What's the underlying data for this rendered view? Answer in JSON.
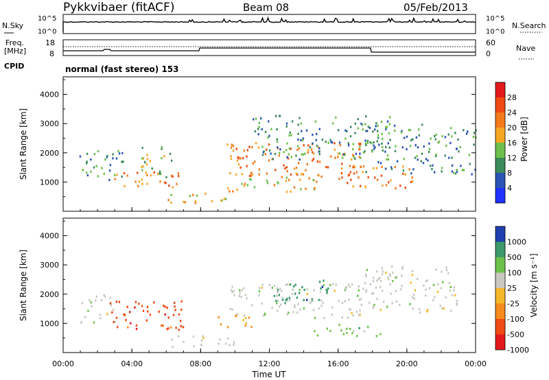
{
  "header": {
    "station": "Pykkvibaer (fitACF)",
    "beam": "Beam 08",
    "date": "05/Feb/2013"
  },
  "noise_panel": {
    "left_label": "N.Sky",
    "right_label": "N.Search",
    "left_ticks": [
      "10^5",
      "10^0"
    ],
    "right_ticks": [
      "10^5",
      "10^0"
    ]
  },
  "freq_panel": {
    "left_label_top": "Freq.",
    "left_label_bottom": "[MHz]",
    "right_label": "Nave",
    "left_ticks": [
      "18",
      "8"
    ],
    "right_ticks": [
      "60",
      "0"
    ]
  },
  "cpid": {
    "label": "CPID",
    "text": "normal (fast stereo) 153"
  },
  "colors": {
    "power_scale": [
      "#1f32ff",
      "#2a55b5",
      "#3b8a5a",
      "#6cbf4a",
      "#f5a623",
      "#f27a1a",
      "#ef4a12",
      "#e31a1c"
    ],
    "velocity_scale": [
      "#e31a1c",
      "#ef4a12",
      "#f58b1a",
      "#f5b72a",
      "#c8c8c0",
      "#6cc14a",
      "#3a9a6a",
      "#1f3fae"
    ],
    "noise_line": "#000000"
  },
  "chart_data": [
    {
      "type": "heatmap",
      "name": "power",
      "xlabel": "",
      "ylabel": "Slant Range [km]",
      "ylim": [
        0,
        4600
      ],
      "y_ticks": [
        "1000",
        "2000",
        "3000",
        "4000"
      ],
      "x_ticks": [
        "00:00",
        "04:00",
        "08:00",
        "12:00",
        "16:00",
        "20:00",
        "00:00"
      ],
      "colorbar": {
        "label": "Power [dB]",
        "ticks": [
          "4",
          "8",
          "12",
          "16",
          "20",
          "24",
          "28"
        ]
      },
      "scatter_bands": [
        {
          "t": [
            0.5,
            3.5
          ],
          "r": [
            1100,
            2100
          ],
          "level": 12
        },
        {
          "t": [
            2.5,
            6.8
          ],
          "r": [
            850,
            1400
          ],
          "level": 24
        },
        {
          "t": [
            4.5,
            6.5
          ],
          "r": [
            1200,
            2300
          ],
          "level": 16
        },
        {
          "t": [
            6.0,
            9.5
          ],
          "r": [
            300,
            700
          ],
          "level": 20
        },
        {
          "t": [
            9.5,
            17.5
          ],
          "r": [
            1200,
            2400
          ],
          "level": 24
        },
        {
          "t": [
            9.5,
            15.0
          ],
          "r": [
            700,
            1200
          ],
          "level": 20
        },
        {
          "t": [
            11.0,
            19.0
          ],
          "r": [
            1800,
            3300
          ],
          "level": 12
        },
        {
          "t": [
            16.0,
            20.5
          ],
          "r": [
            800,
            1600
          ],
          "level": 24
        },
        {
          "t": [
            17.5,
            24.0
          ],
          "r": [
            1300,
            3000
          ],
          "level": 12
        }
      ]
    },
    {
      "type": "heatmap",
      "name": "velocity",
      "xlabel": "Time UT",
      "ylabel": "Slant Range [km]",
      "ylim": [
        0,
        4600
      ],
      "y_ticks": [
        "1000",
        "2000",
        "3000",
        "4000"
      ],
      "x_ticks": [
        "00:00",
        "04:00",
        "08:00",
        "12:00",
        "16:00",
        "20:00",
        "00:00"
      ],
      "colorbar": {
        "label": "Velocity [m s⁻¹]",
        "ticks": [
          "1000",
          "500",
          "100",
          "25",
          "-25",
          "-100",
          "-500",
          "-1000"
        ]
      },
      "scatter_bands": [
        {
          "t": [
            1.0,
            3.0
          ],
          "r": [
            1000,
            2000
          ],
          "v": -25
        },
        {
          "t": [
            2.5,
            7.0
          ],
          "r": [
            800,
            1800
          ],
          "v": -500
        },
        {
          "t": [
            6.0,
            10.0
          ],
          "r": [
            200,
            600
          ],
          "v": -25
        },
        {
          "t": [
            9.0,
            11.0
          ],
          "r": [
            800,
            1300
          ],
          "v": -100
        },
        {
          "t": [
            9.5,
            17.5
          ],
          "r": [
            1200,
            2400
          ],
          "v": -25
        },
        {
          "t": [
            14.5,
            18.5
          ],
          "r": [
            600,
            1000
          ],
          "v": 100
        },
        {
          "t": [
            17.5,
            23.0
          ],
          "r": [
            1400,
            3000
          ],
          "v": -25
        },
        {
          "t": [
            12.0,
            15.5
          ],
          "r": [
            1700,
            2500
          ],
          "v": 500
        }
      ]
    }
  ]
}
